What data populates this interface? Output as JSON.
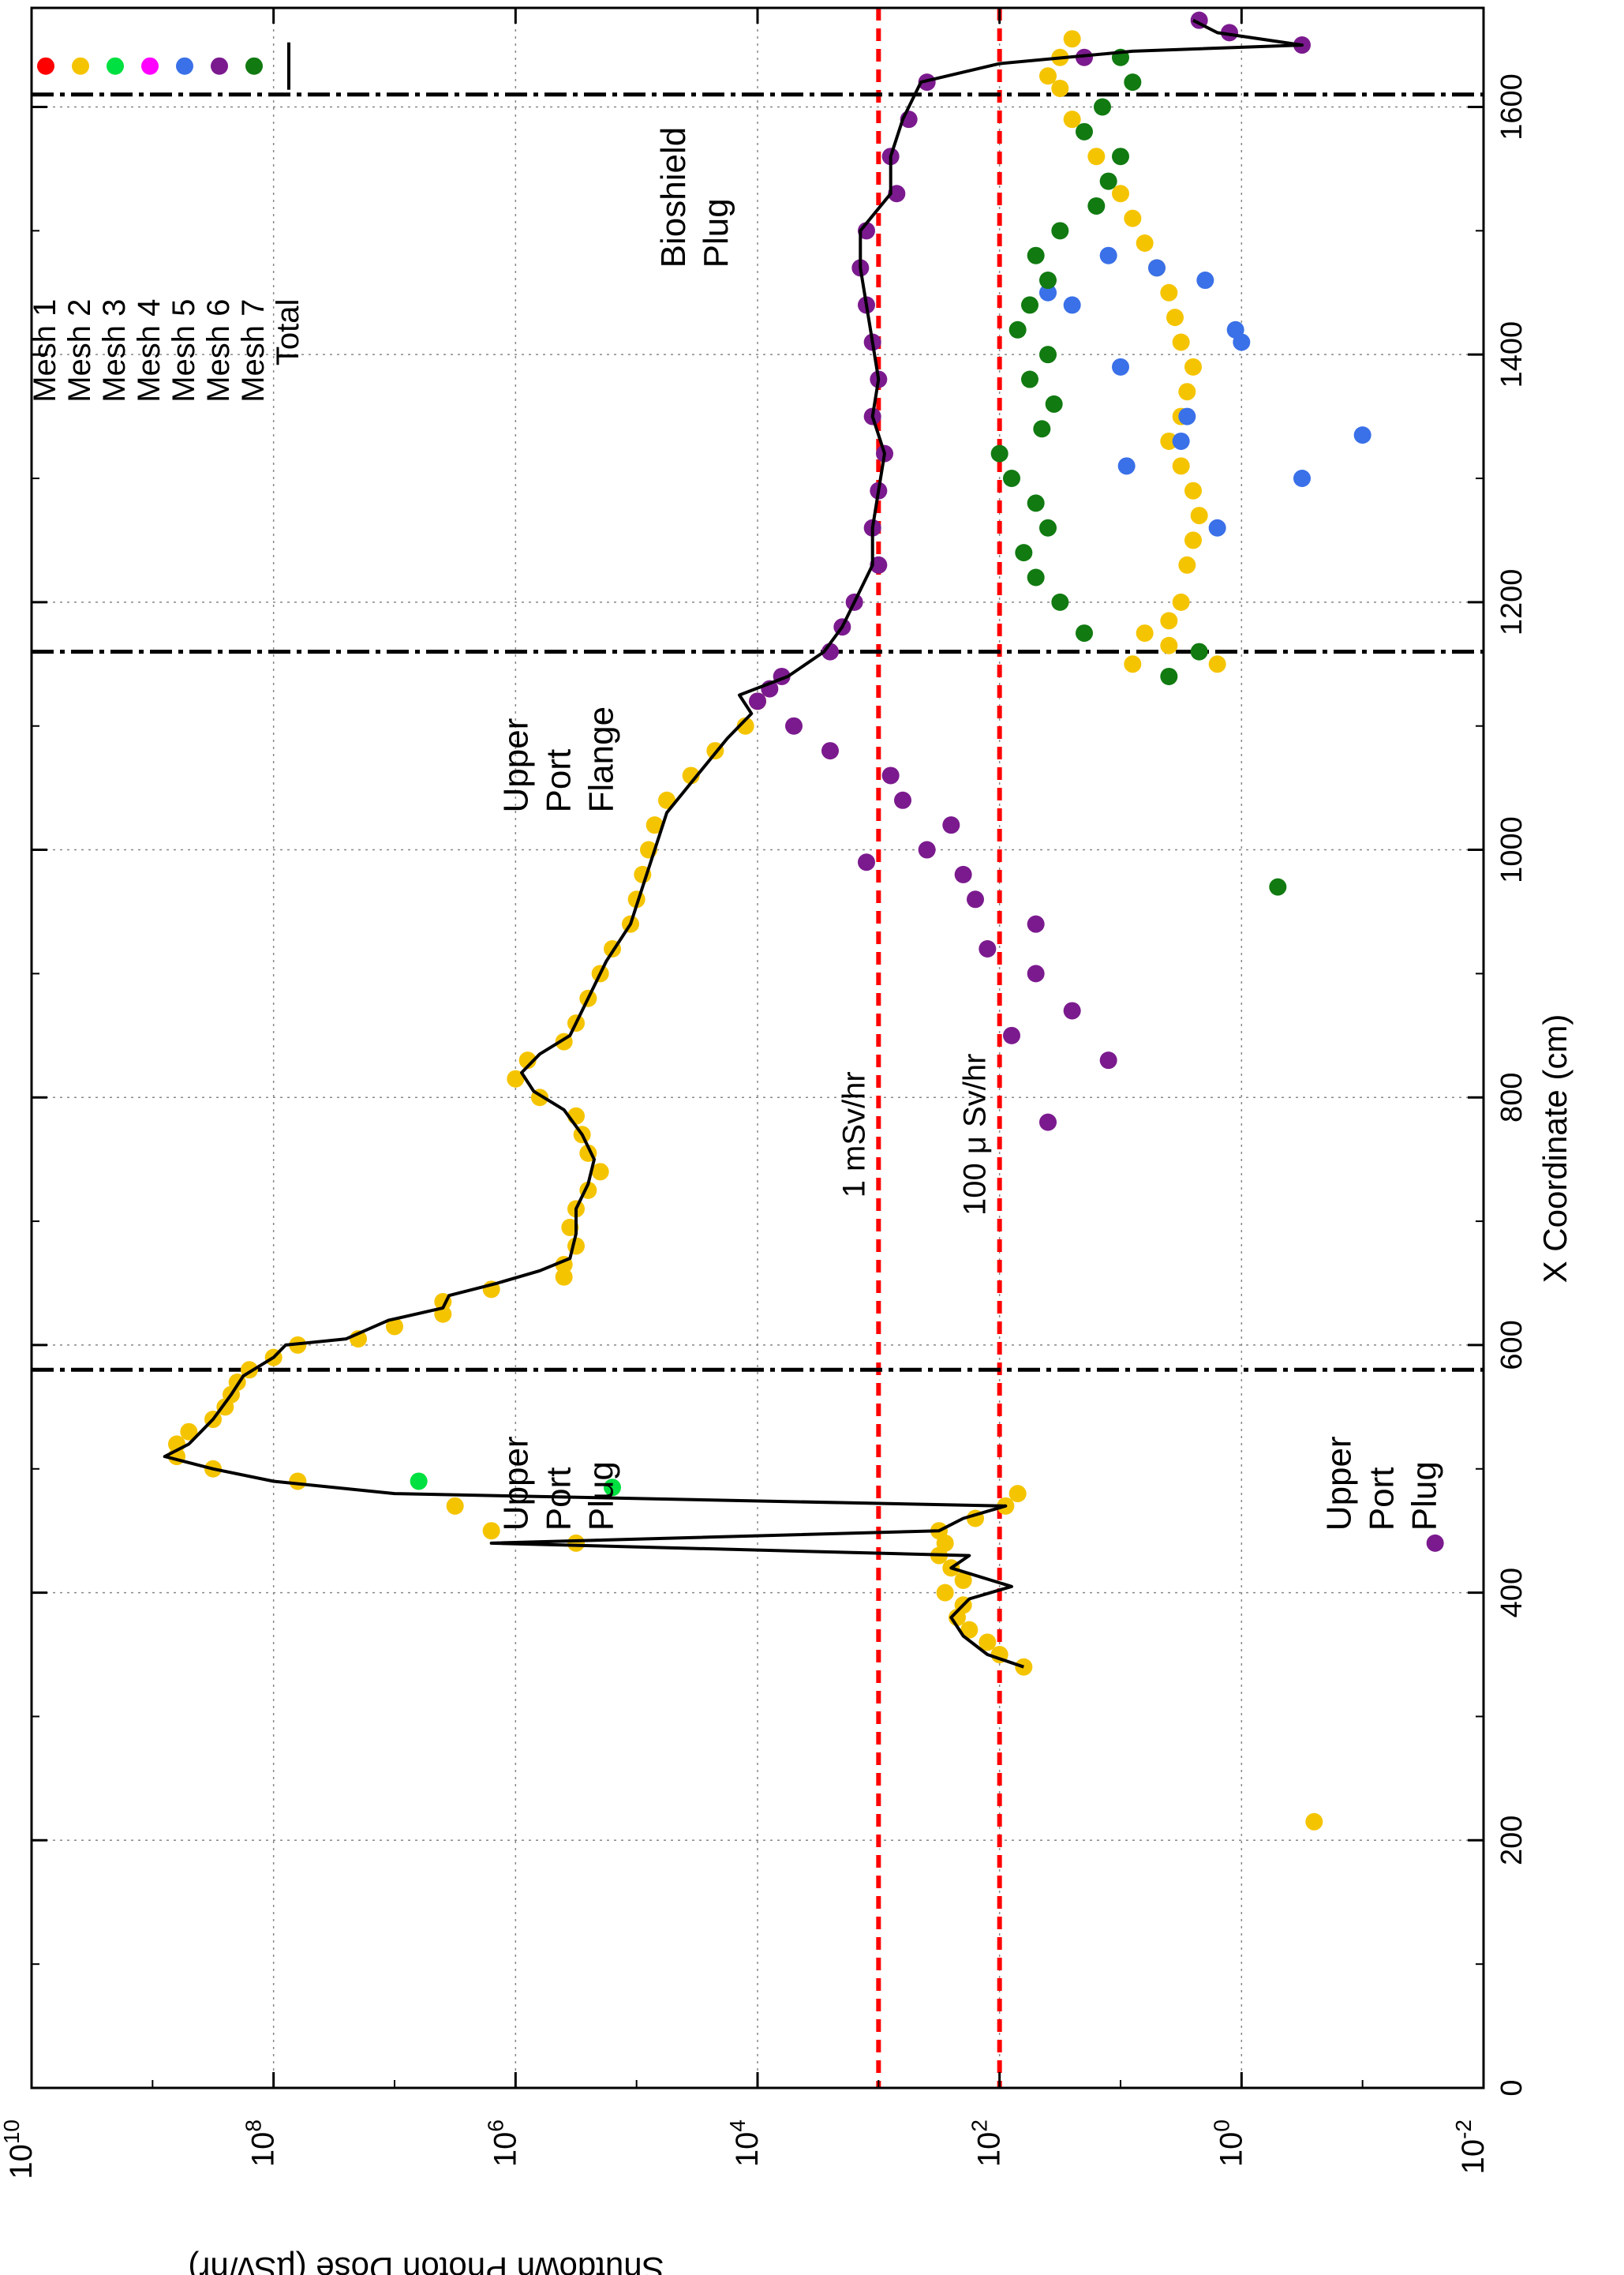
{
  "chart_data": {
    "type": "scatter",
    "orientation": "rotated 90 degrees clockwise",
    "xlabel": "X Coordinate (cm)",
    "ylabel": "Shutdown Photon Dose (µSv/hr)",
    "xlim": [
      0,
      1680
    ],
    "ylog": true,
    "ylim_log10": [
      -2,
      10
    ],
    "x_ticks": [
      0,
      200,
      400,
      600,
      800,
      1000,
      1200,
      1400,
      1600
    ],
    "y_ticks": [
      {
        "base": "10",
        "exp": "10",
        "value": 10
      },
      {
        "base": "10",
        "exp": "8",
        "value": 8
      },
      {
        "base": "10",
        "exp": "6",
        "value": 6
      },
      {
        "base": "10",
        "exp": "4",
        "value": 4
      },
      {
        "base": "10",
        "exp": "2",
        "value": 2
      },
      {
        "base": "10",
        "exp": "0",
        "value": 0
      },
      {
        "base": "10",
        "exp": "-2",
        "value": -2
      }
    ],
    "grid": true,
    "legend_position": "top-right",
    "reference_lines": [
      {
        "label": "1 mSv/hr",
        "log10_value": 3,
        "color": "#ff0000"
      },
      {
        "label": "100 μ Sv/hr",
        "log10_value": 2,
        "color": "#ff0000"
      }
    ],
    "region_boundaries_x": [
      580,
      1160,
      1610
    ],
    "region_labels": [
      {
        "lines": [
          "Upper",
          "Port",
          "Plug"
        ],
        "x": 450,
        "log10_y": 5.9
      },
      {
        "lines": [
          "Upper",
          "Port",
          "Plug"
        ],
        "x": 450,
        "log10_y": -0.9
      },
      {
        "lines": [
          "Upper",
          "Port",
          "Flange"
        ],
        "x": 1030,
        "log10_y": 5.9
      },
      {
        "lines": [
          "Bioshield",
          "Plug"
        ],
        "x": 1470,
        "log10_y": 4.6
      }
    ],
    "legend": [
      {
        "name": "Mesh 1",
        "color": "#ff0000"
      },
      {
        "name": "Mesh 2",
        "color": "#f5c400"
      },
      {
        "name": "Mesh 3",
        "color": "#00e040"
      },
      {
        "name": "Mesh 4",
        "color": "#ff00ff"
      },
      {
        "name": "Mesh 5",
        "color": "#3a70e8"
      },
      {
        "name": "Mesh 6",
        "color": "#7b1a8e"
      },
      {
        "name": "Mesh 7",
        "color": "#117a11"
      },
      {
        "name": "Total",
        "color": "#000000"
      }
    ],
    "series": [
      {
        "name": "Mesh 1",
        "points": []
      },
      {
        "name": "Mesh 2",
        "points": [
          [
            215,
            -0.6
          ],
          [
            340,
            1.8
          ],
          [
            350,
            2.0
          ],
          [
            360,
            2.1
          ],
          [
            370,
            2.25
          ],
          [
            380,
            2.35
          ],
          [
            390,
            2.3
          ],
          [
            400,
            2.45
          ],
          [
            410,
            2.3
          ],
          [
            420,
            2.4
          ],
          [
            430,
            2.5
          ],
          [
            440,
            2.45
          ],
          [
            450,
            2.5
          ],
          [
            460,
            2.2
          ],
          [
            470,
            1.95
          ],
          [
            480,
            1.85
          ],
          [
            450,
            6.2
          ],
          [
            440,
            5.5
          ],
          [
            470,
            6.5
          ],
          [
            490,
            7.8
          ],
          [
            500,
            8.5
          ],
          [
            510,
            8.8
          ],
          [
            520,
            8.8
          ],
          [
            530,
            8.7
          ],
          [
            540,
            8.5
          ],
          [
            550,
            8.4
          ],
          [
            560,
            8.35
          ],
          [
            570,
            8.3
          ],
          [
            580,
            8.2
          ],
          [
            590,
            8.0
          ],
          [
            600,
            7.8
          ],
          [
            605,
            7.3
          ],
          [
            615,
            7.0
          ],
          [
            625,
            6.6
          ],
          [
            635,
            6.6
          ],
          [
            645,
            6.2
          ],
          [
            655,
            5.6
          ],
          [
            665,
            5.6
          ],
          [
            680,
            5.5
          ],
          [
            695,
            5.55
          ],
          [
            710,
            5.5
          ],
          [
            725,
            5.4
          ],
          [
            740,
            5.3
          ],
          [
            755,
            5.4
          ],
          [
            770,
            5.45
          ],
          [
            785,
            5.5
          ],
          [
            800,
            5.8
          ],
          [
            815,
            6.0
          ],
          [
            830,
            5.9
          ],
          [
            845,
            5.6
          ],
          [
            860,
            5.5
          ],
          [
            880,
            5.4
          ],
          [
            900,
            5.3
          ],
          [
            920,
            5.2
          ],
          [
            940,
            5.05
          ],
          [
            960,
            5.0
          ],
          [
            980,
            4.95
          ],
          [
            1000,
            4.9
          ],
          [
            1020,
            4.85
          ],
          [
            1040,
            4.75
          ],
          [
            1060,
            4.55
          ],
          [
            1080,
            4.35
          ],
          [
            1100,
            4.1
          ],
          [
            1120,
            4.0
          ],
          [
            1150,
            0.9
          ],
          [
            1150,
            0.2
          ],
          [
            1165,
            0.6
          ],
          [
            1175,
            0.8
          ],
          [
            1185,
            0.6
          ],
          [
            1200,
            0.5
          ],
          [
            1230,
            0.45
          ],
          [
            1250,
            0.4
          ],
          [
            1270,
            0.35
          ],
          [
            1290,
            0.4
          ],
          [
            1310,
            0.5
          ],
          [
            1330,
            0.6
          ],
          [
            1350,
            0.5
          ],
          [
            1370,
            0.45
          ],
          [
            1390,
            0.4
          ],
          [
            1410,
            0.5
          ],
          [
            1430,
            0.55
          ],
          [
            1450,
            0.6
          ],
          [
            1470,
            0.7
          ],
          [
            1490,
            0.8
          ],
          [
            1510,
            0.9
          ],
          [
            1530,
            1.0
          ],
          [
            1560,
            1.2
          ],
          [
            1590,
            1.4
          ],
          [
            1615,
            1.5
          ],
          [
            1625,
            1.6
          ],
          [
            1640,
            1.5
          ],
          [
            1655,
            1.4
          ]
        ]
      },
      {
        "name": "Mesh 3",
        "points": [
          [
            490,
            6.8
          ],
          [
            485,
            5.2
          ]
        ]
      },
      {
        "name": "Mesh 4",
        "points": []
      },
      {
        "name": "Mesh 5",
        "points": [
          [
            1260,
            0.2
          ],
          [
            1300,
            -0.5
          ],
          [
            1310,
            0.95
          ],
          [
            1330,
            0.5
          ],
          [
            1350,
            0.45
          ],
          [
            1390,
            1.0
          ],
          [
            1410,
            0.0
          ],
          [
            1420,
            0.05
          ],
          [
            1440,
            1.4
          ],
          [
            1450,
            1.6
          ],
          [
            1460,
            0.3
          ],
          [
            1470,
            0.7
          ],
          [
            1480,
            1.1
          ],
          [
            1335,
            -1.0
          ]
        ]
      },
      {
        "name": "Mesh 6",
        "points": [
          [
            440,
            -1.6
          ],
          [
            780,
            1.6
          ],
          [
            830,
            1.1
          ],
          [
            850,
            1.9
          ],
          [
            870,
            1.4
          ],
          [
            900,
            1.7
          ],
          [
            920,
            2.1
          ],
          [
            940,
            1.7
          ],
          [
            960,
            2.2
          ],
          [
            980,
            2.3
          ],
          [
            990,
            3.1
          ],
          [
            1000,
            2.6
          ],
          [
            1020,
            2.4
          ],
          [
            1040,
            2.8
          ],
          [
            1060,
            2.9
          ],
          [
            1080,
            3.4
          ],
          [
            1100,
            3.7
          ],
          [
            1120,
            4.0
          ],
          [
            1130,
            3.9
          ],
          [
            1140,
            3.8
          ],
          [
            1160,
            3.4
          ],
          [
            1180,
            3.3
          ],
          [
            1200,
            3.2
          ],
          [
            1230,
            3.0
          ],
          [
            1260,
            3.05
          ],
          [
            1290,
            3.0
          ],
          [
            1320,
            2.95
          ],
          [
            1350,
            3.05
          ],
          [
            1380,
            3.0
          ],
          [
            1410,
            3.05
          ],
          [
            1440,
            3.1
          ],
          [
            1470,
            3.15
          ],
          [
            1500,
            3.1
          ],
          [
            1530,
            2.85
          ],
          [
            1560,
            2.9
          ],
          [
            1590,
            2.75
          ],
          [
            1620,
            2.6
          ],
          [
            1640,
            1.3
          ],
          [
            1650,
            -0.5
          ],
          [
            1660,
            0.1
          ],
          [
            1670,
            0.35
          ]
        ]
      },
      {
        "name": "Mesh 7",
        "points": [
          [
            970,
            -0.3
          ],
          [
            1140,
            0.6
          ],
          [
            1160,
            0.35
          ],
          [
            1175,
            1.3
          ],
          [
            1200,
            1.5
          ],
          [
            1220,
            1.7
          ],
          [
            1240,
            1.8
          ],
          [
            1260,
            1.6
          ],
          [
            1280,
            1.7
          ],
          [
            1300,
            1.9
          ],
          [
            1320,
            2.0
          ],
          [
            1340,
            1.65
          ],
          [
            1360,
            1.55
          ],
          [
            1380,
            1.75
          ],
          [
            1400,
            1.6
          ],
          [
            1420,
            1.85
          ],
          [
            1440,
            1.75
          ],
          [
            1460,
            1.6
          ],
          [
            1480,
            1.7
          ],
          [
            1500,
            1.5
          ],
          [
            1520,
            1.2
          ],
          [
            1540,
            1.1
          ],
          [
            1560,
            1.0
          ],
          [
            1580,
            1.3
          ],
          [
            1600,
            1.15
          ],
          [
            1620,
            0.9
          ],
          [
            1640,
            1.0
          ]
        ]
      }
    ],
    "total_line": [
      [
        340,
        1.8
      ],
      [
        350,
        2.1
      ],
      [
        365,
        2.3
      ],
      [
        380,
        2.4
      ],
      [
        395,
        2.25
      ],
      [
        405,
        1.9
      ],
      [
        420,
        2.4
      ],
      [
        430,
        2.25
      ],
      [
        440,
        6.2
      ],
      [
        450,
        2.5
      ],
      [
        460,
        2.3
      ],
      [
        470,
        1.95
      ],
      [
        480,
        7.0
      ],
      [
        490,
        8.0
      ],
      [
        500,
        8.5
      ],
      [
        510,
        8.9
      ],
      [
        520,
        8.7
      ],
      [
        540,
        8.5
      ],
      [
        560,
        8.35
      ],
      [
        575,
        8.25
      ],
      [
        590,
        8.0
      ],
      [
        600,
        7.9
      ],
      [
        605,
        7.4
      ],
      [
        620,
        7.05
      ],
      [
        630,
        6.6
      ],
      [
        640,
        6.55
      ],
      [
        650,
        6.15
      ],
      [
        660,
        5.8
      ],
      [
        670,
        5.55
      ],
      [
        690,
        5.5
      ],
      [
        710,
        5.5
      ],
      [
        730,
        5.4
      ],
      [
        750,
        5.35
      ],
      [
        770,
        5.45
      ],
      [
        790,
        5.6
      ],
      [
        805,
        5.85
      ],
      [
        820,
        5.95
      ],
      [
        835,
        5.8
      ],
      [
        850,
        5.55
      ],
      [
        880,
        5.4
      ],
      [
        910,
        5.25
      ],
      [
        940,
        5.05
      ],
      [
        970,
        4.95
      ],
      [
        1000,
        4.85
      ],
      [
        1030,
        4.75
      ],
      [
        1060,
        4.5
      ],
      [
        1090,
        4.25
      ],
      [
        1110,
        4.05
      ],
      [
        1125,
        4.15
      ],
      [
        1140,
        3.75
      ],
      [
        1160,
        3.45
      ],
      [
        1180,
        3.3
      ],
      [
        1200,
        3.2
      ],
      [
        1230,
        3.05
      ],
      [
        1260,
        3.05
      ],
      [
        1290,
        3.0
      ],
      [
        1320,
        2.95
      ],
      [
        1350,
        3.05
      ],
      [
        1380,
        3.0
      ],
      [
        1410,
        3.05
      ],
      [
        1440,
        3.1
      ],
      [
        1470,
        3.15
      ],
      [
        1500,
        3.15
      ],
      [
        1530,
        2.9
      ],
      [
        1560,
        2.9
      ],
      [
        1590,
        2.8
      ],
      [
        1620,
        2.65
      ],
      [
        1635,
        2.0
      ],
      [
        1645,
        0.9
      ],
      [
        1650,
        -0.5
      ],
      [
        1660,
        0.2
      ],
      [
        1670,
        0.4
      ]
    ]
  }
}
